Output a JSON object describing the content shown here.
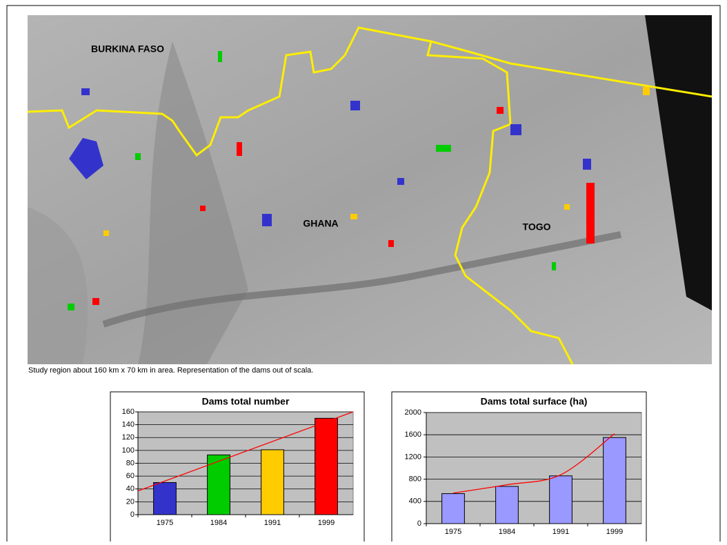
{
  "map": {
    "labels": [
      "BURKINA FASO",
      "GHANA",
      "TOGO"
    ]
  },
  "caption": "Study region about 160 km x 70 km in area. Representation of the dams out of scala.",
  "chart_data": [
    {
      "type": "bar",
      "title": "Dams total number",
      "categories": [
        "1975",
        "1984",
        "1991",
        "1999"
      ],
      "values": [
        50,
        93,
        101,
        150
      ],
      "colors": [
        "#3333cc",
        "#00cc00",
        "#ffcc00",
        "#ff0000"
      ],
      "ylim": [
        0,
        160
      ],
      "yticks": [
        0,
        20,
        40,
        60,
        80,
        100,
        120,
        140,
        160
      ],
      "grid": true,
      "trendline": {
        "type": "linear",
        "color": "#ff0000"
      }
    },
    {
      "type": "bar",
      "title": "Dams total surface (ha)",
      "categories": [
        "1975",
        "1984",
        "1991",
        "1999"
      ],
      "values": [
        540,
        670,
        860,
        1550
      ],
      "color": "#9999ff",
      "ylim": [
        0,
        2000
      ],
      "yticks": [
        0,
        400,
        800,
        1200,
        1600,
        2000
      ],
      "grid": true,
      "trendline": {
        "type": "curve",
        "color": "#ff0000",
        "values": [
          550,
          700,
          880,
          1620
        ]
      }
    }
  ]
}
